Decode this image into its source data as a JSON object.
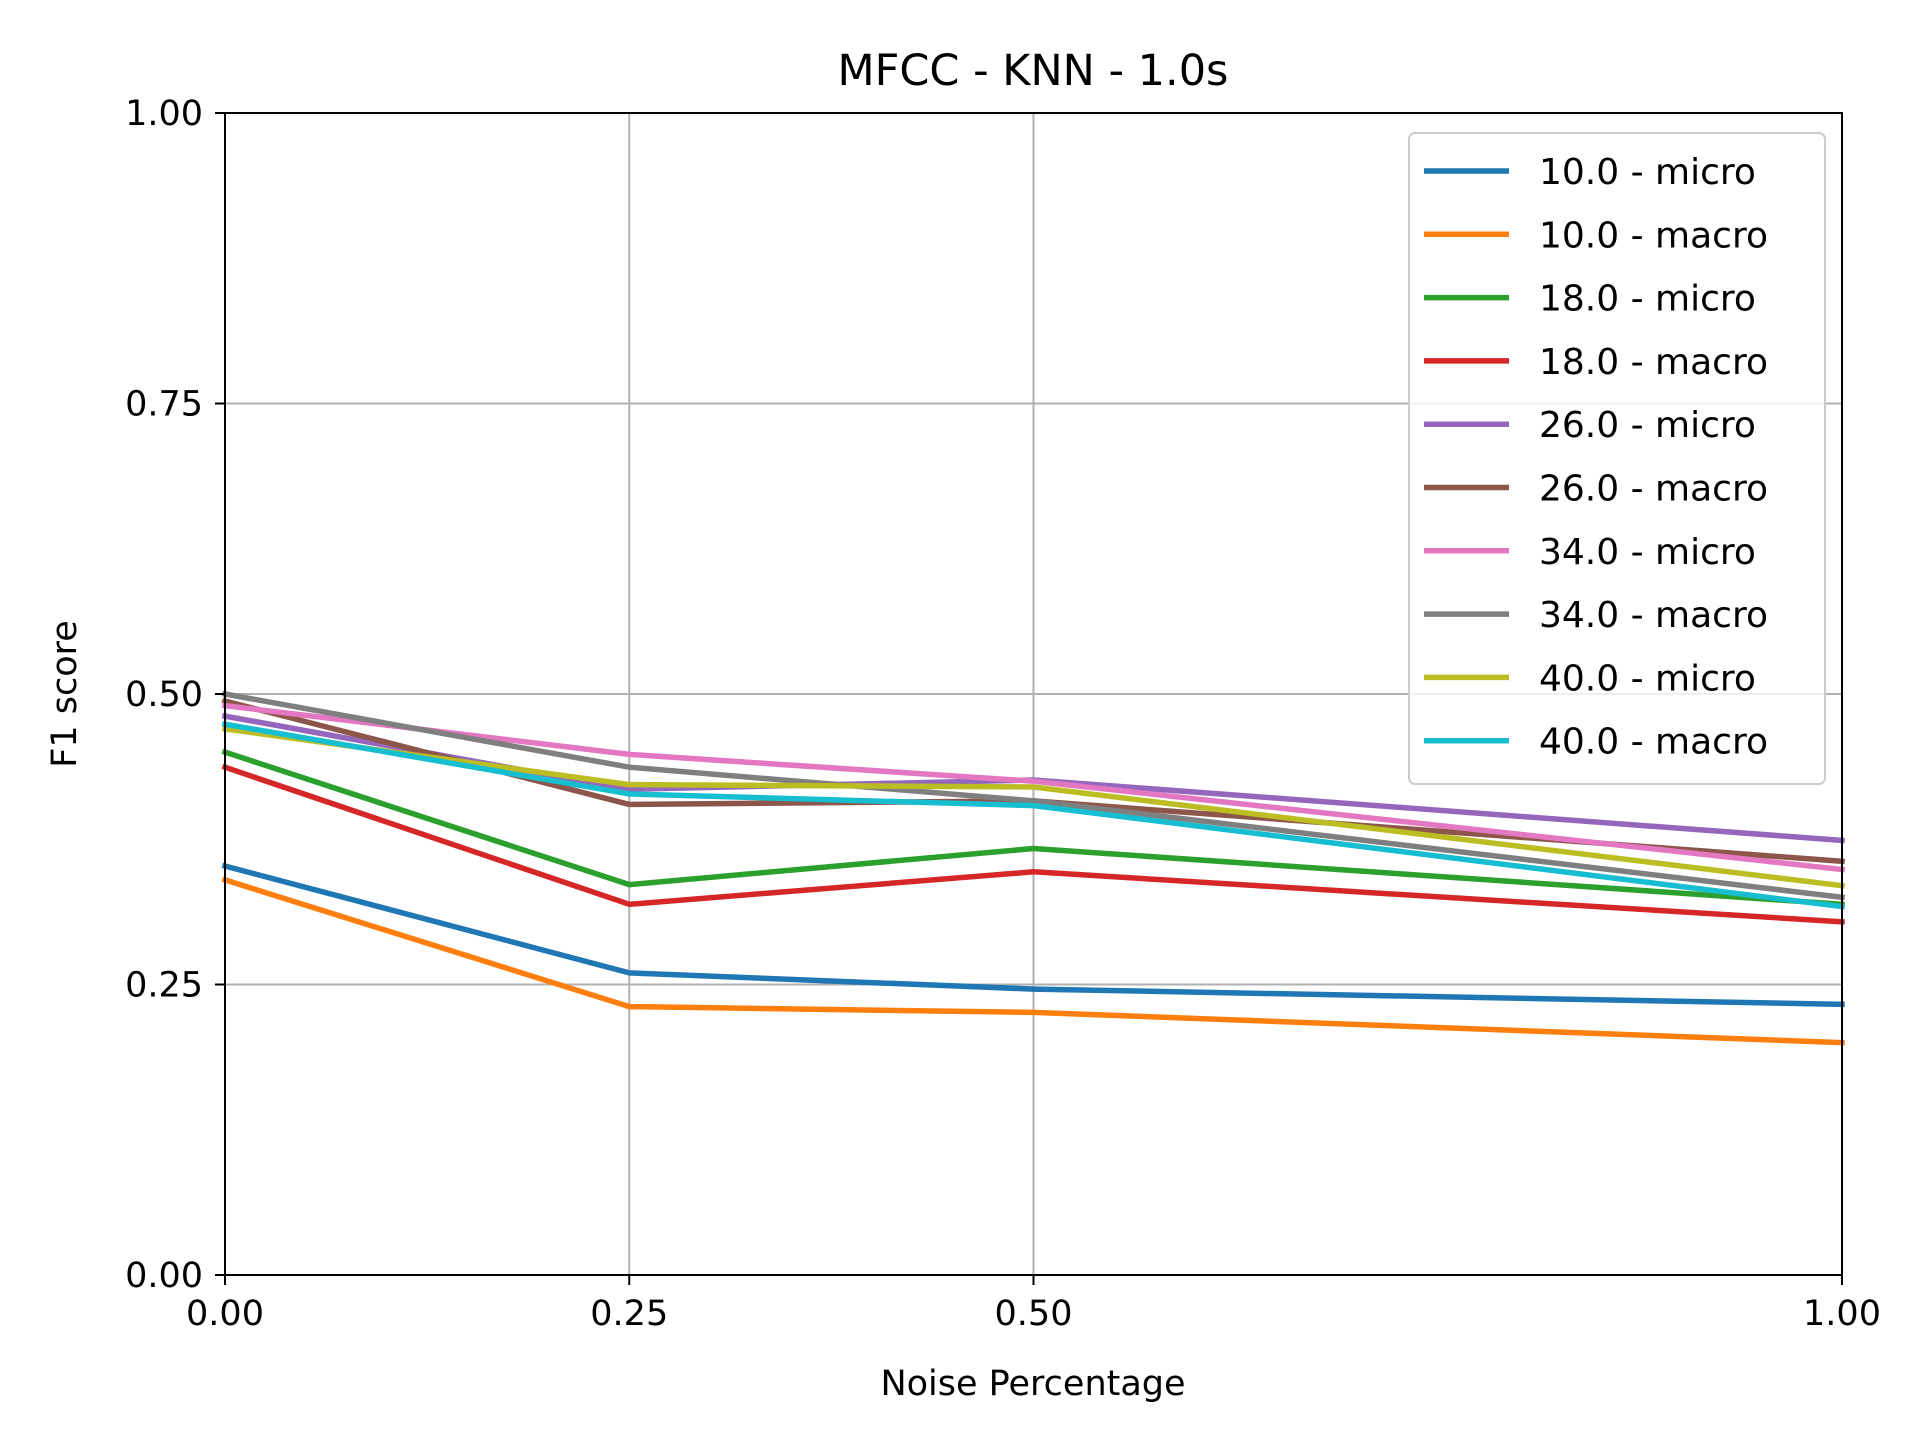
{
  "chart_data": {
    "type": "line",
    "title": "MFCC - KNN - 1.0s",
    "xlabel": "Noise Percentage",
    "ylabel": "F1 score",
    "x": [
      0.0,
      0.25,
      0.5,
      1.0
    ],
    "x_ticks": [
      "0.00",
      "0.25",
      "0.50",
      "1.00"
    ],
    "y_ticks": [
      "0.00",
      "0.25",
      "0.50",
      "0.75",
      "1.00"
    ],
    "xlim": [
      0,
      1
    ],
    "ylim": [
      0,
      1
    ],
    "grid": true,
    "legend_position": "top-right",
    "series": [
      {
        "name": "10.0 - micro",
        "color": "#1f77b4",
        "values": [
          0.352,
          0.26,
          0.246,
          0.233
        ]
      },
      {
        "name": "10.0 - macro",
        "color": "#ff7f0e",
        "values": [
          0.34,
          0.231,
          0.226,
          0.2
        ]
      },
      {
        "name": "18.0 - micro",
        "color": "#2ca02c",
        "values": [
          0.45,
          0.336,
          0.367,
          0.319
        ]
      },
      {
        "name": "18.0 - macro",
        "color": "#d62728",
        "values": [
          0.437,
          0.319,
          0.347,
          0.304
        ]
      },
      {
        "name": "26.0 - micro",
        "color": "#9467bd",
        "values": [
          0.481,
          0.418,
          0.426,
          0.374
        ]
      },
      {
        "name": "26.0 - macro",
        "color": "#8c564b",
        "values": [
          0.494,
          0.405,
          0.408,
          0.356
        ]
      },
      {
        "name": "34.0 - micro",
        "color": "#e377c2",
        "values": [
          0.49,
          0.448,
          0.425,
          0.349
        ]
      },
      {
        "name": "34.0 - macro",
        "color": "#7f7f7f",
        "values": [
          0.5,
          0.437,
          0.408,
          0.325
        ]
      },
      {
        "name": "40.0 - micro",
        "color": "#bcbd22",
        "values": [
          0.47,
          0.422,
          0.42,
          0.335
        ]
      },
      {
        "name": "40.0 - macro",
        "color": "#17becf",
        "values": [
          0.474,
          0.414,
          0.404,
          0.317
        ]
      }
    ]
  }
}
